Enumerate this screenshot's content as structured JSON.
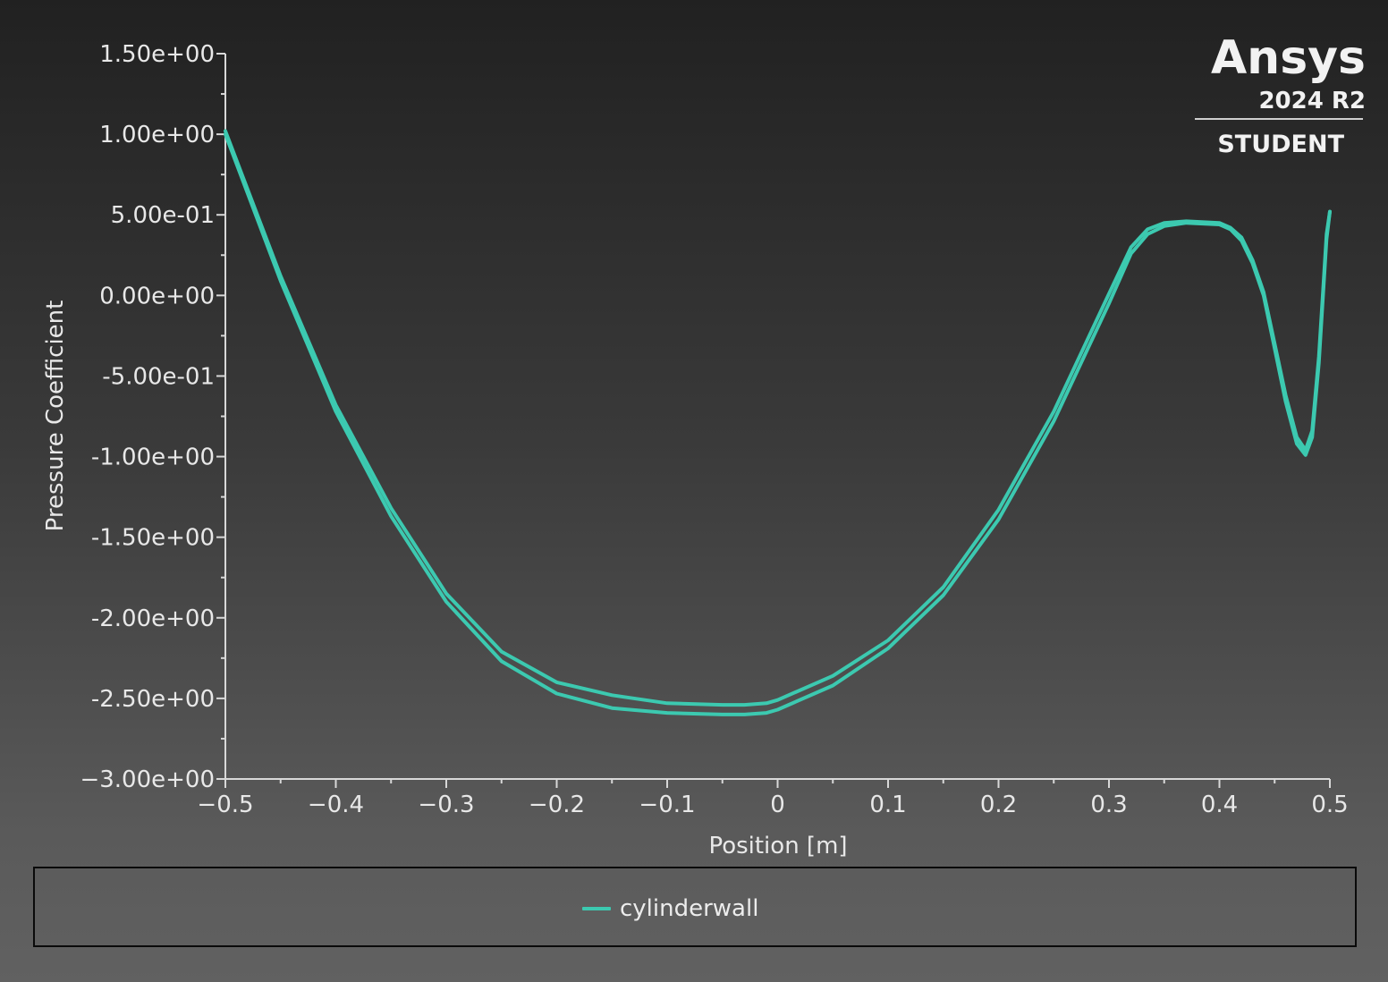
{
  "logo": {
    "brand": "Ansys",
    "version": "2024 R2",
    "edition": "STUDENT"
  },
  "colors": {
    "series": "#3cc9b0",
    "axis": "#d8d8d8"
  },
  "chart_data": {
    "type": "line",
    "xlabel": "Position [m]",
    "ylabel": "Pressure Coefficient",
    "xlim": [
      -0.5,
      0.5
    ],
    "ylim": [
      -3.0,
      1.5
    ],
    "xticks": [
      -0.5,
      -0.4,
      -0.3,
      -0.2,
      -0.1,
      0,
      0.1,
      0.2,
      0.3,
      0.4,
      0.5
    ],
    "xtick_labels": [
      "−0.5",
      "−0.4",
      "−0.3",
      "−0.2",
      "−0.1",
      "0",
      "0.1",
      "0.2",
      "0.3",
      "0.4",
      "0.5"
    ],
    "yticks": [
      1.5,
      1.0,
      0.5,
      0.0,
      -0.5,
      -1.0,
      -1.5,
      -2.0,
      -2.5,
      -3.0
    ],
    "ytick_labels": [
      "1.50e+00",
      "1.00e+00",
      "5.00e-01",
      "0.00e+00",
      "-5.00e-01",
      "-1.00e+00",
      "-1.50e+00",
      "-2.00e+00",
      "-2.50e+00",
      "−3.00e+00"
    ],
    "legend": "bottom",
    "grid": false,
    "series": [
      {
        "name": "cylinderwall",
        "traces": [
          {
            "x": [
              -0.5,
              -0.45,
              -0.4,
              -0.35,
              -0.3,
              -0.25,
              -0.2,
              -0.15,
              -0.1,
              -0.05,
              -0.03,
              -0.01,
              0.0,
              0.05,
              0.1,
              0.15,
              0.2,
              0.25,
              0.3,
              0.32,
              0.335,
              0.35,
              0.37,
              0.4,
              0.41,
              0.42,
              0.43,
              0.44,
              0.45,
              0.46,
              0.47,
              0.478,
              0.484,
              0.49,
              0.494,
              0.497,
              0.5
            ],
            "y": [
              1.02,
              0.12,
              -0.68,
              -1.32,
              -1.85,
              -2.21,
              -2.4,
              -2.48,
              -2.53,
              -2.54,
              -2.54,
              -2.53,
              -2.51,
              -2.36,
              -2.14,
              -1.81,
              -1.33,
              -0.72,
              0.01,
              0.3,
              0.41,
              0.45,
              0.46,
              0.45,
              0.42,
              0.36,
              0.22,
              0.02,
              -0.3,
              -0.62,
              -0.88,
              -0.96,
              -0.84,
              -0.38,
              0.05,
              0.38,
              0.52
            ]
          },
          {
            "x": [
              -0.5,
              -0.45,
              -0.4,
              -0.35,
              -0.3,
              -0.25,
              -0.2,
              -0.15,
              -0.1,
              -0.05,
              -0.03,
              -0.01,
              0.0,
              0.05,
              0.1,
              0.15,
              0.2,
              0.25,
              0.3,
              0.32,
              0.335,
              0.35,
              0.37,
              0.4,
              0.41,
              0.42,
              0.43,
              0.44,
              0.45,
              0.46,
              0.47,
              0.478,
              0.484,
              0.49,
              0.494,
              0.497,
              0.5
            ],
            "y": [
              1.0,
              0.09,
              -0.72,
              -1.37,
              -1.9,
              -2.27,
              -2.47,
              -2.56,
              -2.59,
              -2.6,
              -2.6,
              -2.59,
              -2.57,
              -2.42,
              -2.19,
              -1.86,
              -1.39,
              -0.78,
              -0.05,
              0.26,
              0.38,
              0.43,
              0.45,
              0.44,
              0.41,
              0.34,
              0.2,
              0.0,
              -0.33,
              -0.66,
              -0.92,
              -0.99,
              -0.88,
              -0.42,
              0.02,
              0.35,
              0.52
            ]
          }
        ]
      }
    ]
  }
}
